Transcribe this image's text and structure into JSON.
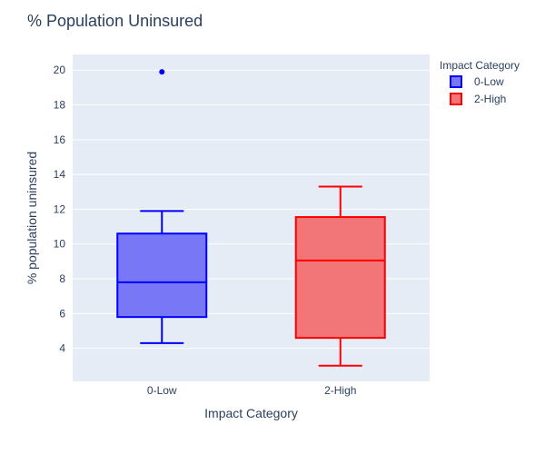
{
  "chart_data": {
    "type": "box",
    "title": "% Population Uninsured",
    "xlabel": "Impact Category",
    "ylabel": "% population uninsured",
    "categories": [
      "0-Low",
      "2-High"
    ],
    "ylim": [
      2.1,
      20.9
    ],
    "yticks": [
      4,
      6,
      8,
      10,
      12,
      14,
      16,
      18,
      20
    ],
    "grid": true,
    "legend": {
      "title": "Impact Category",
      "position": "top-right"
    },
    "series": [
      {
        "name": "0-Low",
        "color": "#0000ff",
        "fill": "#7878f7",
        "min": 4.3,
        "q1": 5.8,
        "median": 7.8,
        "q3": 10.6,
        "max": 11.9,
        "outliers": [
          19.9
        ]
      },
      {
        "name": "2-High",
        "color": "#ff0000",
        "fill": "#f27678",
        "min": 3.0,
        "q1": 4.6,
        "median": 9.05,
        "q3": 11.55,
        "max": 13.3,
        "outliers": []
      }
    ]
  }
}
